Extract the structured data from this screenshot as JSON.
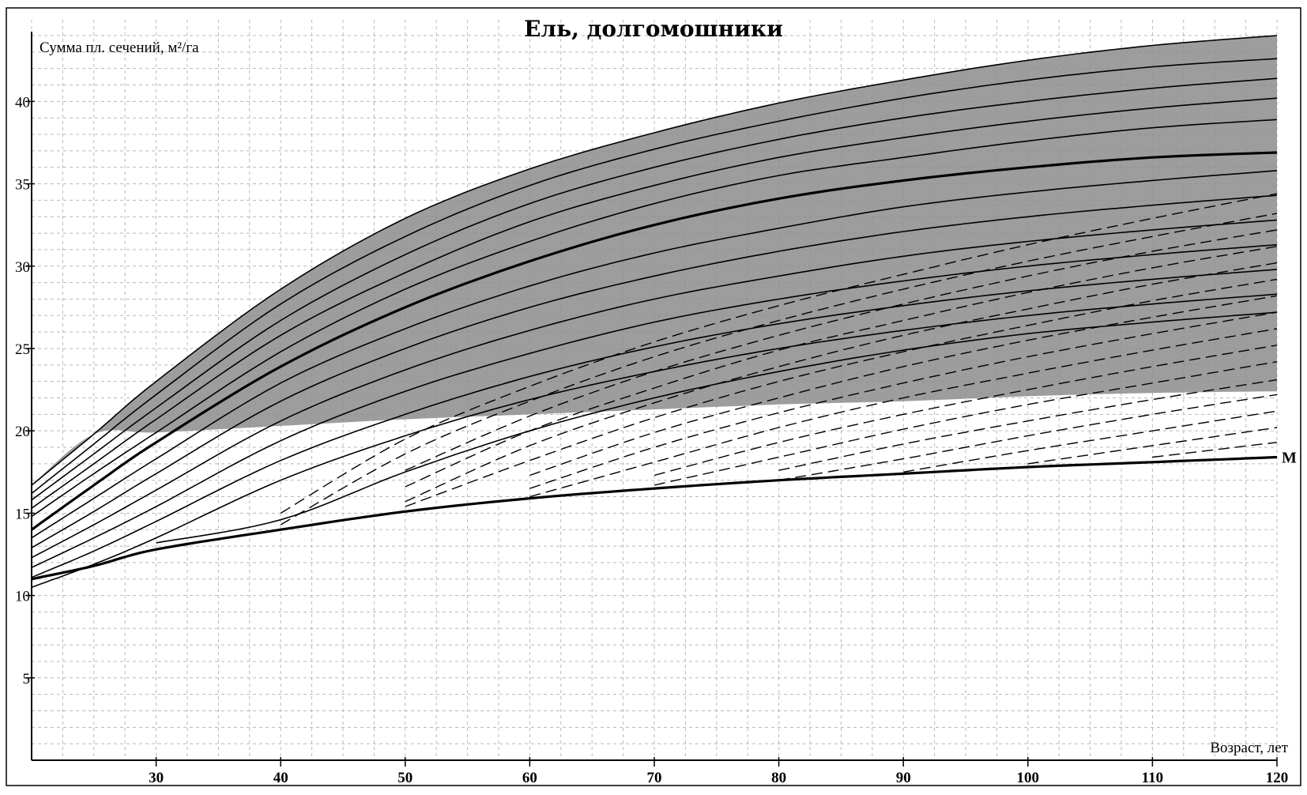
{
  "chart_data": {
    "type": "line",
    "title": "Ель, долгомошники",
    "xlabel": "Возраст, лет",
    "ylabel": "Сумма пл. сечений, м²/га",
    "xlim": [
      20,
      120
    ],
    "ylim": [
      0,
      44
    ],
    "x_ticks": [
      30,
      40,
      50,
      60,
      70,
      80,
      90,
      100,
      110,
      120
    ],
    "y_ticks": [
      5,
      10,
      15,
      20,
      25,
      30,
      35,
      40
    ],
    "grid": true,
    "colors": {
      "band": "#8c8c8c",
      "line": "#000000",
      "grid": "#b8b8b8"
    },
    "shaded_band": {
      "x": [
        20,
        25,
        30,
        40,
        50,
        60,
        70,
        80,
        90,
        100,
        110,
        120
      ],
      "upper": [
        16.7,
        19.8,
        23.0,
        28.6,
        32.9,
        35.9,
        38.1,
        39.9,
        41.3,
        42.5,
        43.4,
        44.0
      ],
      "lower": [
        16.7,
        19.8,
        19.9,
        20.3,
        20.7,
        21.0,
        21.3,
        21.6,
        21.8,
        22.1,
        22.3,
        22.4
      ]
    },
    "x": [
      20,
      25,
      30,
      40,
      50,
      60,
      70,
      80,
      90,
      100,
      110,
      120
    ],
    "series": [
      {
        "values": [
          16.7,
          19.8,
          23.0,
          28.6,
          32.9,
          35.9,
          38.1,
          39.9,
          41.3,
          42.5,
          43.4,
          44.0
        ],
        "style": "solid"
      },
      {
        "values": [
          16.2,
          19.2,
          22.2,
          27.7,
          31.8,
          34.9,
          37.1,
          38.8,
          40.2,
          41.3,
          42.1,
          42.6
        ],
        "style": "solid"
      },
      {
        "values": [
          15.8,
          18.6,
          21.4,
          26.7,
          30.7,
          33.8,
          36.0,
          37.7,
          39.0,
          40.0,
          40.8,
          41.4
        ],
        "style": "solid"
      },
      {
        "values": [
          15.3,
          18.0,
          20.7,
          25.8,
          29.6,
          32.7,
          34.9,
          36.6,
          37.8,
          38.8,
          39.6,
          40.2
        ],
        "style": "solid"
      },
      {
        "values": [
          14.8,
          17.4,
          19.9,
          24.8,
          28.6,
          31.5,
          33.8,
          35.5,
          36.6,
          37.6,
          38.4,
          38.9
        ],
        "style": "solid"
      },
      {
        "values": [
          14.0,
          16.7,
          19.3,
          23.9,
          27.5,
          30.3,
          32.5,
          34.1,
          35.2,
          36.0,
          36.6,
          36.9
        ],
        "style": "solid",
        "emphasis": true
      },
      {
        "values": [
          13.5,
          15.9,
          18.3,
          22.9,
          26.2,
          28.8,
          30.8,
          32.3,
          33.6,
          34.5,
          35.2,
          35.8
        ],
        "style": "solid"
      },
      {
        "values": [
          12.9,
          15.1,
          17.4,
          21.8,
          25.0,
          27.5,
          29.4,
          30.9,
          32.1,
          33.0,
          33.7,
          34.3
        ],
        "style": "solid"
      },
      {
        "values": [
          12.3,
          14.3,
          16.4,
          20.6,
          23.7,
          26.1,
          28.0,
          29.4,
          30.6,
          31.5,
          32.2,
          32.8
        ],
        "style": "solid"
      },
      {
        "values": [
          11.7,
          13.5,
          15.4,
          19.4,
          22.4,
          24.7,
          26.6,
          28.0,
          29.1,
          30.0,
          30.7,
          31.3
        ],
        "style": "solid"
      },
      {
        "values": [
          11.1,
          12.7,
          14.5,
          18.2,
          21.0,
          23.3,
          25.1,
          26.5,
          27.6,
          28.5,
          29.2,
          29.8
        ],
        "style": "solid"
      },
      {
        "values": [
          10.5,
          11.9,
          13.5,
          17.0,
          19.7,
          21.9,
          23.6,
          25.0,
          26.1,
          27.0,
          27.7,
          28.3
        ],
        "style": "solid"
      },
      {
        "values": [
          null,
          null,
          13.2,
          14.6,
          17.5,
          20.0,
          22.0,
          23.6,
          24.9,
          25.9,
          26.6,
          27.2
        ],
        "style": "solid"
      },
      {
        "values": [
          11.0,
          11.8,
          12.8,
          14.0,
          15.1,
          15.9,
          16.5,
          17.0,
          17.4,
          17.8,
          18.1,
          18.4
        ],
        "style": "solid",
        "emphasis": true,
        "label": "M"
      },
      {
        "values": [
          null,
          null,
          null,
          15.0,
          19.5,
          22.7,
          25.4,
          27.6,
          29.5,
          31.3,
          32.9,
          34.4
        ],
        "style": "dashed"
      },
      {
        "values": [
          null,
          null,
          null,
          14.3,
          18.6,
          21.8,
          24.5,
          26.7,
          28.6,
          30.3,
          31.8,
          33.2
        ],
        "style": "dashed"
      },
      {
        "values": [
          null,
          null,
          null,
          null,
          17.6,
          20.9,
          23.6,
          25.8,
          27.7,
          29.4,
          30.9,
          32.2
        ],
        "style": "dashed"
      },
      {
        "values": [
          null,
          null,
          null,
          null,
          16.6,
          20.0,
          22.6,
          24.9,
          26.7,
          28.4,
          29.9,
          31.2
        ],
        "style": "dashed"
      },
      {
        "values": [
          null,
          null,
          null,
          null,
          15.7,
          19.1,
          21.7,
          23.9,
          25.8,
          27.4,
          28.9,
          30.2
        ],
        "style": "dashed"
      },
      {
        "values": [
          null,
          null,
          null,
          null,
          15.4,
          18.2,
          20.8,
          23.0,
          24.8,
          26.4,
          27.9,
          29.2
        ],
        "style": "dashed"
      },
      {
        "values": [
          null,
          null,
          null,
          null,
          null,
          17.3,
          19.9,
          22.0,
          23.9,
          25.5,
          26.9,
          28.2
        ],
        "style": "dashed"
      },
      {
        "values": [
          null,
          null,
          null,
          null,
          null,
          16.5,
          19.0,
          21.1,
          22.9,
          24.5,
          25.9,
          27.2
        ],
        "style": "dashed"
      },
      {
        "values": [
          null,
          null,
          null,
          null,
          null,
          16.0,
          18.1,
          20.2,
          22.0,
          23.5,
          24.9,
          26.2
        ],
        "style": "dashed"
      },
      {
        "values": [
          null,
          null,
          null,
          null,
          null,
          null,
          17.3,
          19.3,
          21.0,
          22.5,
          23.9,
          25.2
        ],
        "style": "dashed"
      },
      {
        "values": [
          null,
          null,
          null,
          null,
          null,
          null,
          16.7,
          18.4,
          20.1,
          21.6,
          22.9,
          24.2
        ],
        "style": "dashed"
      },
      {
        "values": [
          null,
          null,
          null,
          null,
          null,
          null,
          null,
          17.6,
          19.2,
          20.6,
          21.9,
          23.1
        ],
        "style": "dashed"
      },
      {
        "values": [
          null,
          null,
          null,
          null,
          null,
          null,
          null,
          17.0,
          18.3,
          19.7,
          21.0,
          22.2
        ],
        "style": "dashed"
      },
      {
        "values": [
          null,
          null,
          null,
          null,
          null,
          null,
          null,
          null,
          17.5,
          18.8,
          20.0,
          21.2
        ],
        "style": "dashed"
      },
      {
        "values": [
          null,
          null,
          null,
          null,
          null,
          null,
          null,
          null,
          null,
          18.0,
          19.1,
          20.2
        ],
        "style": "dashed"
      },
      {
        "values": [
          null,
          null,
          null,
          null,
          null,
          null,
          null,
          null,
          null,
          null,
          18.4,
          19.3
        ],
        "style": "dashed"
      }
    ]
  }
}
